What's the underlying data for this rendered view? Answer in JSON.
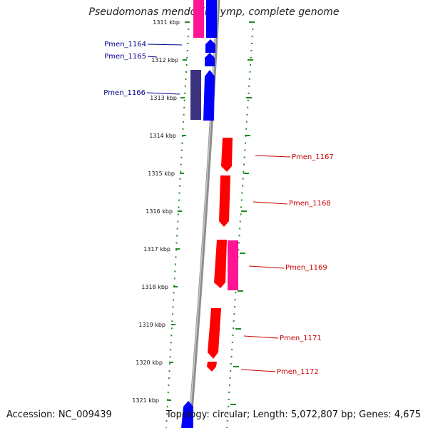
{
  "title": "Pseudomonas mendocina ymp, complete genome",
  "accession_text": "Accession: NC_009439",
  "topology_text": "Topology: circular; Length: 5,072,807 bp; Genes: 4,675",
  "colors": {
    "forward_gene": "#0000ff",
    "reverse_gene": "#ff0000",
    "forward_label": "#00008b",
    "reverse_label": "#cc0000",
    "dot_track": "#228b22",
    "magenta_gene": "#ff1493",
    "dark_gene": "#3c3380",
    "backbone": "#888888"
  },
  "ruler": {
    "unit": "kbp",
    "ticks": [
      "1311 kbp",
      "1312 kbp",
      "1313 kbp",
      "1314 kbp",
      "1315 kbp",
      "1316 kbp",
      "1317 kbp",
      "1318 kbp",
      "1319 kbp",
      "1320 kbp",
      "1321 kbp"
    ]
  },
  "gene_labels": {
    "left": [
      "Pmen_1164",
      "Pmen_1165",
      "Pmen_1166"
    ],
    "right": [
      "Pmen_1167",
      "Pmen_1168",
      "Pmen_1169",
      "Pmen_1171",
      "Pmen_1172"
    ]
  }
}
